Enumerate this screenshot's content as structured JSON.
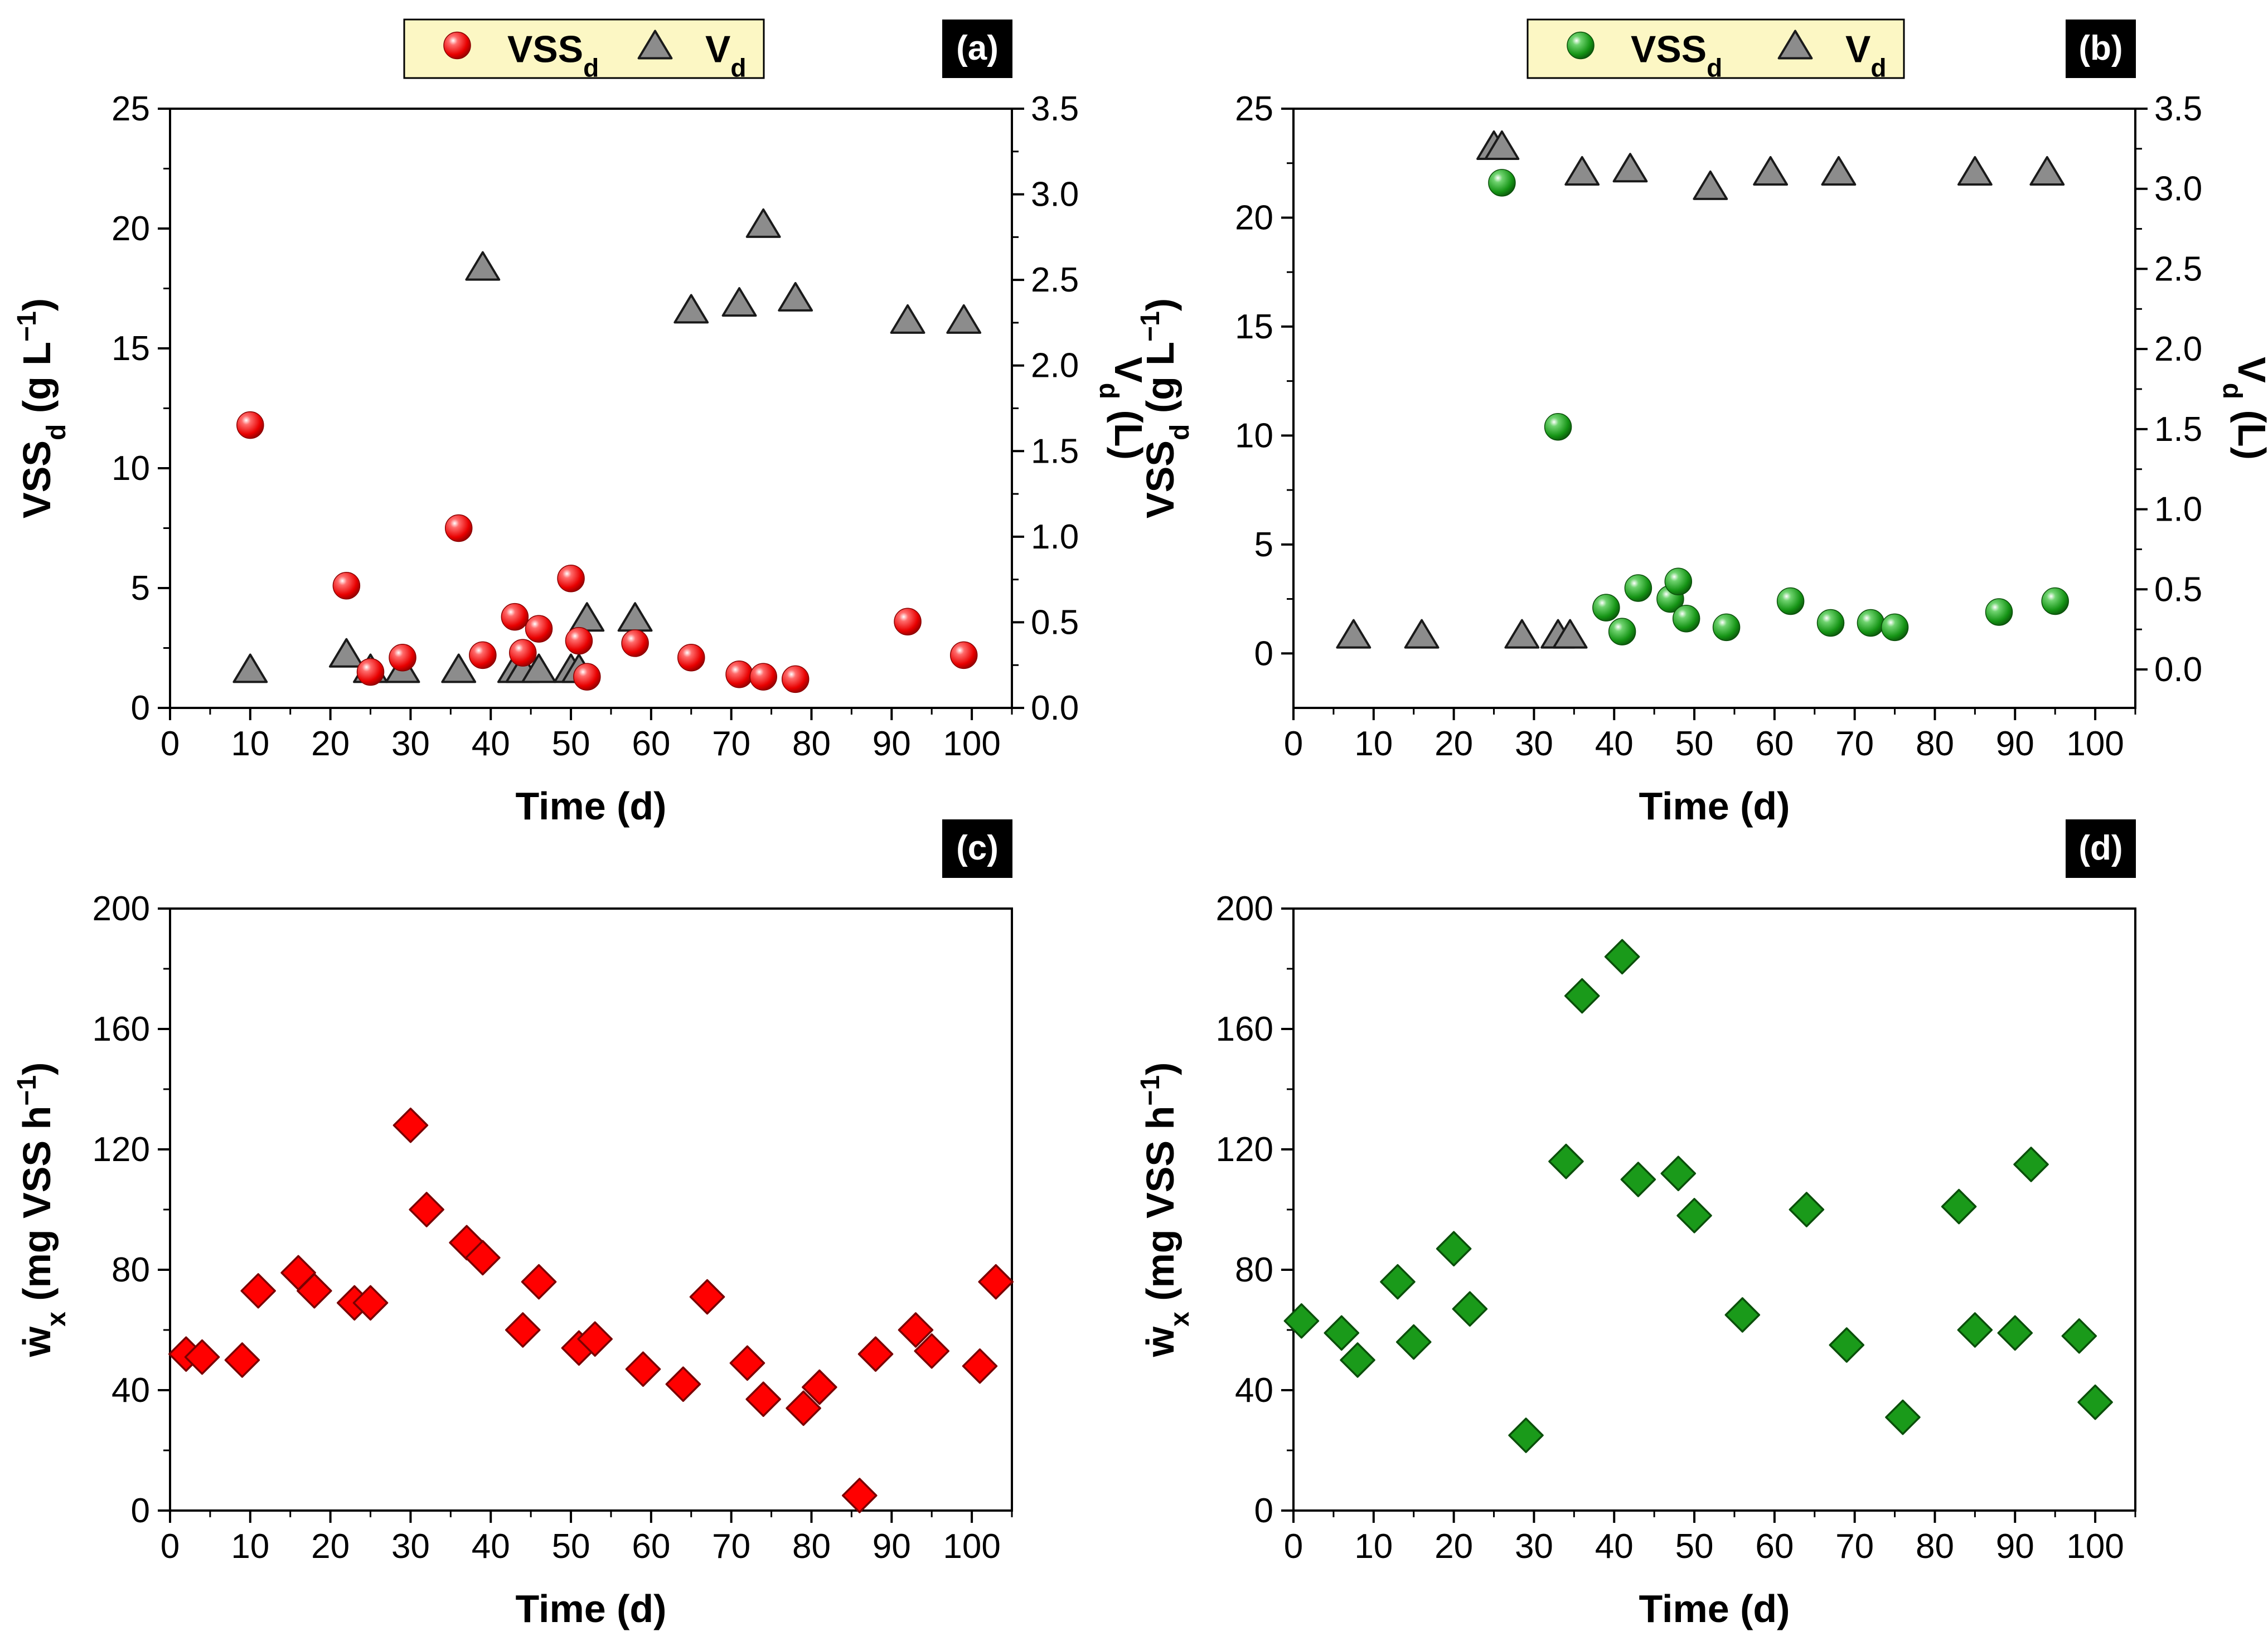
{
  "colors": {
    "red": "#ff0000",
    "green": "#1a9a1a",
    "gray": "#8c8c8c",
    "legend_bg": "#fcf7c4",
    "label_bg": "#000000"
  },
  "chart_data": [
    {
      "id": "a",
      "type": "scatter",
      "panel_label": "(a)",
      "xlabel": "Time (d)",
      "ylabel": {
        "base": "VSS",
        "sub": "d",
        "unit": " (g L",
        "sup": "−1",
        "close": ")"
      },
      "y2label": {
        "base": "V",
        "sub": "d",
        "unit": " (L)"
      },
      "xlim": [
        0,
        105
      ],
      "ylim": [
        0,
        25
      ],
      "y2lim": [
        0,
        3.5
      ],
      "xticks": [
        0,
        10,
        20,
        30,
        40,
        50,
        60,
        70,
        80,
        90,
        100
      ],
      "yticks": [
        0,
        5,
        10,
        15,
        20,
        25
      ],
      "y2ticks": [
        0.0,
        0.5,
        1.0,
        1.5,
        2.0,
        2.5,
        3.0,
        3.5
      ],
      "tick_labels_y2": [
        "0.0",
        "0.5",
        "1.0",
        "1.5",
        "2.0",
        "2.5",
        "3.0",
        "3.5"
      ],
      "legend": [
        {
          "name": "VSS",
          "sub": "d",
          "marker": "sphere",
          "color": "red"
        },
        {
          "name": "V",
          "sub": "d",
          "marker": "triangle",
          "color": "gray"
        }
      ],
      "series": [
        {
          "name": "VSSd",
          "axis": "left",
          "marker": "sphere",
          "color": "red",
          "x": [
            10,
            22,
            25,
            29,
            36,
            39,
            43,
            44,
            46,
            50,
            51,
            52,
            58,
            65,
            71,
            74,
            78,
            92,
            99
          ],
          "y": [
            11.8,
            5.1,
            1.5,
            2.1,
            7.5,
            2.2,
            3.8,
            2.3,
            3.3,
            5.4,
            2.8,
            1.3,
            2.7,
            2.1,
            1.4,
            1.3,
            1.2,
            3.6,
            2.2
          ]
        },
        {
          "name": "Vd",
          "axis": "right",
          "marker": "triangle",
          "color": "gray",
          "x": [
            10,
            22,
            25,
            29,
            36,
            39,
            43,
            44,
            46,
            50,
            51,
            52,
            58,
            65,
            71,
            74,
            78,
            92,
            99
          ],
          "y": [
            0.22,
            0.31,
            0.22,
            0.22,
            0.22,
            2.57,
            0.22,
            0.22,
            0.22,
            0.22,
            0.22,
            0.52,
            0.52,
            2.32,
            2.36,
            2.82,
            2.39,
            2.26,
            2.26
          ]
        }
      ]
    },
    {
      "id": "b",
      "type": "scatter",
      "panel_label": "(b)",
      "xlabel": "Time (d)",
      "ylabel": {
        "base": "VSS",
        "sub": "d",
        "unit": " (g L",
        "sup": "−1",
        "close": ")"
      },
      "y2label": {
        "base": "V",
        "sub": "d",
        "unit": " (L)"
      },
      "xlim": [
        0,
        105
      ],
      "ylim": [
        -2.5,
        25
      ],
      "y2lim": [
        -0.24,
        3.5
      ],
      "xticks": [
        0,
        10,
        20,
        30,
        40,
        50,
        60,
        70,
        80,
        90,
        100
      ],
      "yticks": [
        0,
        5,
        10,
        15,
        20,
        25
      ],
      "y2ticks": [
        0.0,
        0.5,
        1.0,
        1.5,
        2.0,
        2.5,
        3.0,
        3.5
      ],
      "tick_labels_y2": [
        "0.0",
        "0.5",
        "1.0",
        "1.5",
        "2.0",
        "2.5",
        "3.0",
        "3.5"
      ],
      "legend": [
        {
          "name": "VSS",
          "sub": "d",
          "marker": "sphere",
          "color": "green"
        },
        {
          "name": "V",
          "sub": "d",
          "marker": "triangle",
          "color": "gray"
        }
      ],
      "series": [
        {
          "name": "VSSd",
          "axis": "left",
          "marker": "sphere",
          "color": "green",
          "x": [
            26,
            33,
            39,
            41,
            43,
            47,
            48,
            49,
            54,
            62,
            67,
            72,
            75,
            88,
            95
          ],
          "y": [
            21.6,
            10.4,
            2.1,
            1.0,
            3.0,
            2.5,
            3.3,
            1.6,
            1.2,
            2.4,
            1.4,
            1.4,
            1.2,
            1.9,
            2.4
          ]
        },
        {
          "name": "Vd",
          "axis": "right",
          "marker": "triangle",
          "color": "gray",
          "x": [
            7.5,
            16,
            25,
            26,
            28.5,
            33,
            34.5,
            36,
            42,
            52,
            59.5,
            68,
            85,
            94
          ],
          "y": [
            0.21,
            0.21,
            3.26,
            3.26,
            0.21,
            0.21,
            0.21,
            3.1,
            3.12,
            3.01,
            3.1,
            3.1,
            3.1,
            3.1
          ]
        }
      ]
    },
    {
      "id": "c",
      "type": "scatter",
      "panel_label": "(c)",
      "xlabel": "Time (d)",
      "ylabel": {
        "base": "ẇ",
        "sub": "x",
        "unit": " (mg VSS h",
        "sup": "−1",
        "close": ")"
      },
      "xlim": [
        0,
        105
      ],
      "ylim": [
        0,
        200
      ],
      "xticks": [
        0,
        10,
        20,
        30,
        40,
        50,
        60,
        70,
        80,
        90,
        100
      ],
      "yticks": [
        0,
        40,
        80,
        120,
        160,
        200
      ],
      "series": [
        {
          "name": "wx",
          "axis": "left",
          "marker": "diamond",
          "color": "red",
          "x": [
            2,
            4,
            9,
            11,
            16,
            18,
            23,
            25,
            30,
            32,
            37,
            39,
            44,
            46,
            51,
            53,
            59,
            64,
            67,
            72,
            74,
            79,
            81,
            86,
            88,
            93,
            95,
            101,
            103
          ],
          "y": [
            52,
            51,
            50,
            73,
            79,
            73,
            69,
            69,
            128,
            100,
            89,
            84,
            60,
            76,
            54,
            57,
            47,
            42,
            71,
            49,
            37,
            34,
            41,
            5,
            52,
            60,
            53,
            48,
            76
          ]
        }
      ]
    },
    {
      "id": "d",
      "type": "scatter",
      "panel_label": "(d)",
      "xlabel": "Time (d)",
      "ylabel": {
        "base": "ẇ",
        "sub": "x",
        "unit": " (mg VSS h",
        "sup": "−1",
        "close": ")"
      },
      "xlim": [
        0,
        105
      ],
      "ylim": [
        0,
        200
      ],
      "xticks": [
        0,
        10,
        20,
        30,
        40,
        50,
        60,
        70,
        80,
        90,
        100
      ],
      "yticks": [
        0,
        40,
        80,
        120,
        160,
        200
      ],
      "series": [
        {
          "name": "wx",
          "axis": "left",
          "marker": "diamond",
          "color": "green",
          "x": [
            1,
            6,
            8,
            13,
            15,
            20,
            22,
            29,
            34,
            36,
            41,
            43,
            48,
            50,
            56,
            64,
            69,
            76,
            83,
            85,
            90,
            92,
            98,
            100
          ],
          "y": [
            63,
            59,
            50,
            76,
            56,
            87,
            67,
            25,
            116,
            171,
            184,
            110,
            112,
            98,
            65,
            100,
            55,
            31,
            101,
            60,
            59,
            115,
            58,
            36
          ]
        }
      ]
    }
  ]
}
